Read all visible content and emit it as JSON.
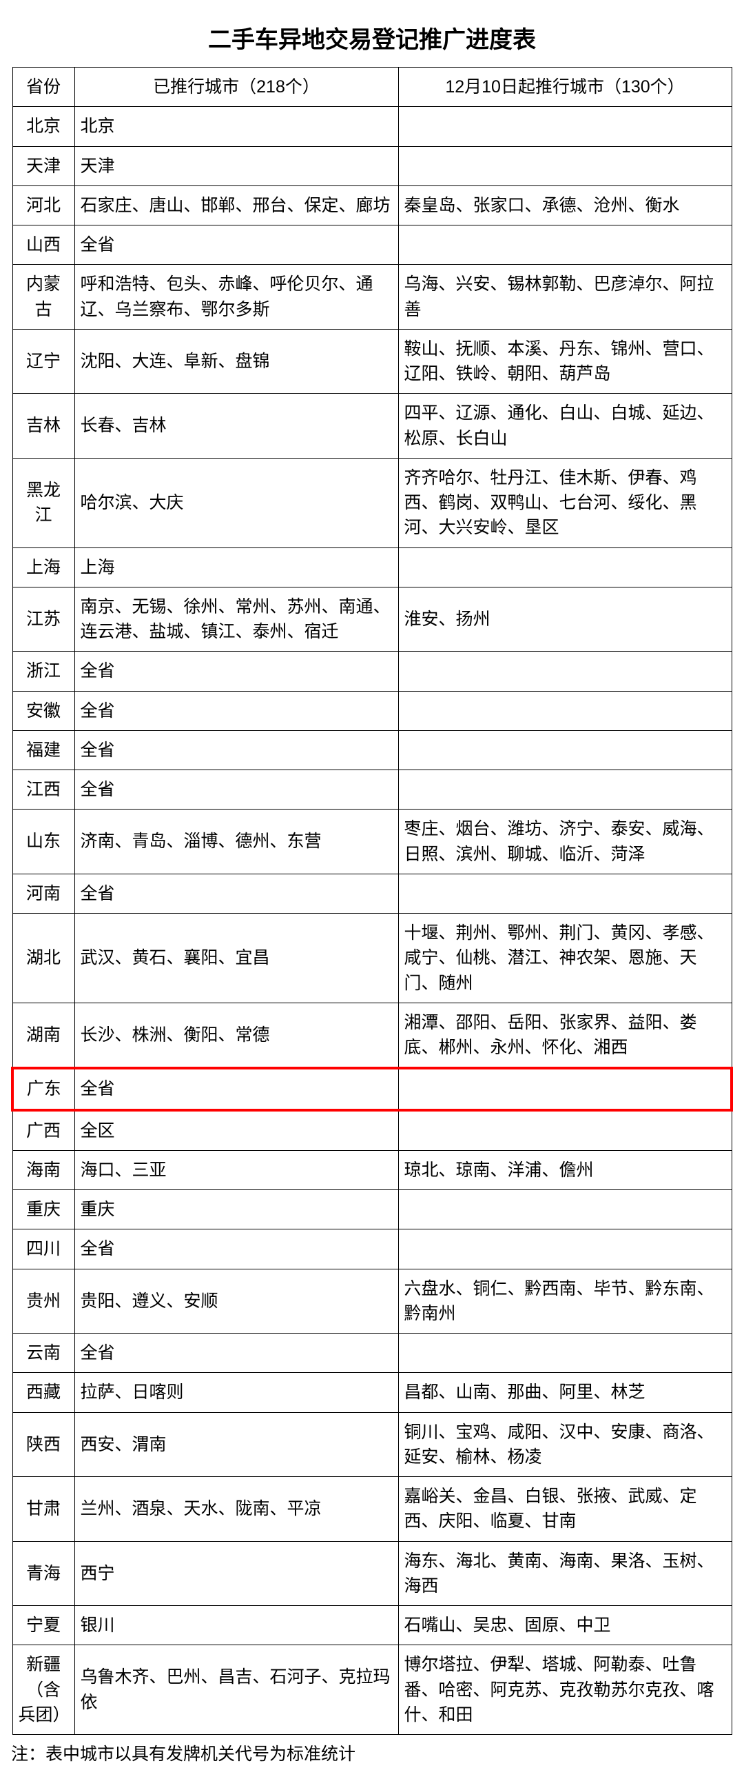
{
  "title": "二手车异地交易登记推广进度表",
  "columns": [
    "省份",
    "已推行城市（218个）",
    "12月10日起推行城市（130个）"
  ],
  "highlight_color": "#ff0000",
  "highlight_province": "广东",
  "footnote": "注：表中城市以具有发牌机关代号为标准统计",
  "rows": [
    {
      "province": "北京",
      "implemented": "北京",
      "upcoming": ""
    },
    {
      "province": "天津",
      "implemented": "天津",
      "upcoming": ""
    },
    {
      "province": "河北",
      "implemented": "石家庄、唐山、邯郸、邢台、保定、廊坊",
      "upcoming": "秦皇岛、张家口、承德、沧州、衡水"
    },
    {
      "province": "山西",
      "implemented": "全省",
      "upcoming": ""
    },
    {
      "province": "内蒙古",
      "implemented": "呼和浩特、包头、赤峰、呼伦贝尔、通辽、乌兰察布、鄂尔多斯",
      "upcoming": "乌海、兴安、锡林郭勒、巴彦淖尔、阿拉善"
    },
    {
      "province": "辽宁",
      "implemented": "沈阳、大连、阜新、盘锦",
      "upcoming": "鞍山、抚顺、本溪、丹东、锦州、营口、辽阳、铁岭、朝阳、葫芦岛"
    },
    {
      "province": "吉林",
      "implemented": "长春、吉林",
      "upcoming": "四平、辽源、通化、白山、白城、延边、松原、长白山"
    },
    {
      "province": "黑龙江",
      "implemented": "哈尔滨、大庆",
      "upcoming": "齐齐哈尔、牡丹江、佳木斯、伊春、鸡西、鹤岗、双鸭山、七台河、绥化、黑河、大兴安岭、垦区"
    },
    {
      "province": "上海",
      "implemented": "上海",
      "upcoming": ""
    },
    {
      "province": "江苏",
      "implemented": "南京、无锡、徐州、常州、苏州、南通、连云港、盐城、镇江、泰州、宿迁",
      "upcoming": "淮安、扬州"
    },
    {
      "province": "浙江",
      "implemented": "全省",
      "upcoming": ""
    },
    {
      "province": "安徽",
      "implemented": "全省",
      "upcoming": ""
    },
    {
      "province": "福建",
      "implemented": "全省",
      "upcoming": ""
    },
    {
      "province": "江西",
      "implemented": "全省",
      "upcoming": ""
    },
    {
      "province": "山东",
      "implemented": "济南、青岛、淄博、德州、东营",
      "upcoming": "枣庄、烟台、潍坊、济宁、泰安、威海、日照、滨州、聊城、临沂、菏泽"
    },
    {
      "province": "河南",
      "implemented": "全省",
      "upcoming": ""
    },
    {
      "province": "湖北",
      "implemented": "武汉、黄石、襄阳、宜昌",
      "upcoming": "十堰、荆州、鄂州、荆门、黄冈、孝感、咸宁、仙桃、潜江、神农架、恩施、天门、随州"
    },
    {
      "province": "湖南",
      "implemented": "长沙、株洲、衡阳、常德",
      "upcoming": "湘潭、邵阳、岳阳、张家界、益阳、娄底、郴州、永州、怀化、湘西"
    },
    {
      "province": "广东",
      "implemented": "全省",
      "upcoming": ""
    },
    {
      "province": "广西",
      "implemented": "全区",
      "upcoming": ""
    },
    {
      "province": "海南",
      "implemented": "海口、三亚",
      "upcoming": "琼北、琼南、洋浦、儋州"
    },
    {
      "province": "重庆",
      "implemented": "重庆",
      "upcoming": ""
    },
    {
      "province": "四川",
      "implemented": "全省",
      "upcoming": ""
    },
    {
      "province": "贵州",
      "implemented": "贵阳、遵义、安顺",
      "upcoming": "六盘水、铜仁、黔西南、毕节、黔东南、黔南州"
    },
    {
      "province": "云南",
      "implemented": "全省",
      "upcoming": ""
    },
    {
      "province": "西藏",
      "implemented": "拉萨、日喀则",
      "upcoming": "昌都、山南、那曲、阿里、林芝"
    },
    {
      "province": "陕西",
      "implemented": "西安、渭南",
      "upcoming": "铜川、宝鸡、咸阳、汉中、安康、商洛、延安、榆林、杨凌"
    },
    {
      "province": "甘肃",
      "implemented": "兰州、酒泉、天水、陇南、平凉",
      "upcoming": "嘉峪关、金昌、白银、张掖、武威、定西、庆阳、临夏、甘南"
    },
    {
      "province": "青海",
      "implemented": "西宁",
      "upcoming": "海东、海北、黄南、海南、果洛、玉树、海西"
    },
    {
      "province": "宁夏",
      "implemented": "银川",
      "upcoming": "石嘴山、吴忠、固原、中卫"
    },
    {
      "province": "新疆（含兵团）",
      "implemented": "乌鲁木齐、巴州、昌吉、石河子、克拉玛依",
      "upcoming": "博尔塔拉、伊犁、塔城、阿勒泰、吐鲁番、哈密、阿克苏、克孜勒苏尔克孜、喀什、和田"
    }
  ]
}
